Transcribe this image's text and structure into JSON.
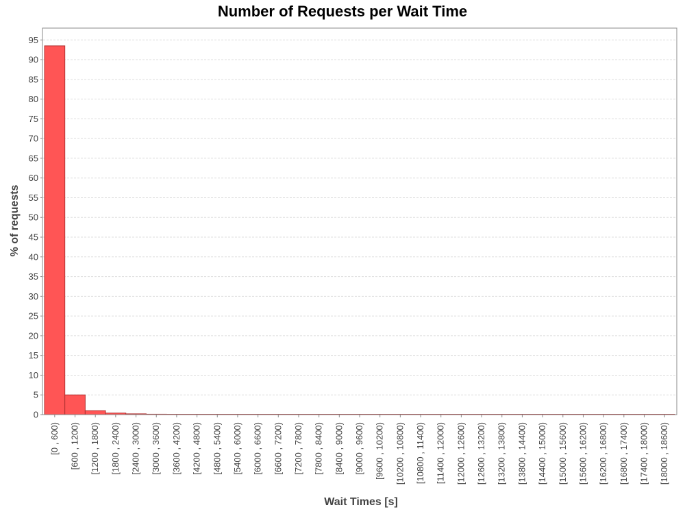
{
  "chart_data": {
    "type": "bar",
    "title": "Number of Requests per Wait Time",
    "xlabel": "Wait Times [s]",
    "ylabel": "% of requests",
    "ylim": [
      0,
      98
    ],
    "yticks": [
      0,
      5,
      10,
      15,
      20,
      25,
      30,
      35,
      40,
      45,
      50,
      55,
      60,
      65,
      70,
      75,
      80,
      85,
      90,
      95
    ],
    "grid": true,
    "categories": [
      "[0 , 600)",
      "[600 , 1200)",
      "[1200 , 1800)",
      "[1800 , 2400)",
      "[2400 , 3000)",
      "[3000 , 3600)",
      "[3600 , 4200)",
      "[4200 , 4800)",
      "[4800 , 5400)",
      "[5400 , 6000)",
      "[6000 , 6600)",
      "[6600 , 7200)",
      "[7200 , 7800)",
      "[7800 , 8400)",
      "[8400 , 9000)",
      "[9000 , 9600)",
      "[9600 , 10200)",
      "[10200 , 10800)",
      "[10800 , 11400)",
      "[11400 , 12000)",
      "[12000 , 12600)",
      "[12600 , 13200)",
      "[13200 , 13800)",
      "[13800 , 14400)",
      "[14400 , 15000)",
      "[15000 , 15600)",
      "[15600 , 16200)",
      "[16200 , 16800)",
      "[16800 , 17400)",
      "[17400 , 18000)",
      "[18000 , 18600)"
    ],
    "values": [
      93.5,
      5.0,
      1.0,
      0.4,
      0.2,
      0.1,
      0.08,
      0.05,
      0.05,
      0.04,
      0.04,
      0.04,
      0.03,
      0.03,
      0.02,
      0.02,
      0.02,
      0.02,
      0.01,
      0.01,
      0.01,
      0.01,
      0.01,
      0.01,
      0.01,
      0.01,
      0.01,
      0.01,
      0.01,
      0.01,
      0.01
    ],
    "colors": {
      "bar_fill": "#ff5555",
      "bar_stroke": "#b03030",
      "grid": "#dddddd",
      "axis": "#888888",
      "tick_text": "#444444"
    }
  }
}
